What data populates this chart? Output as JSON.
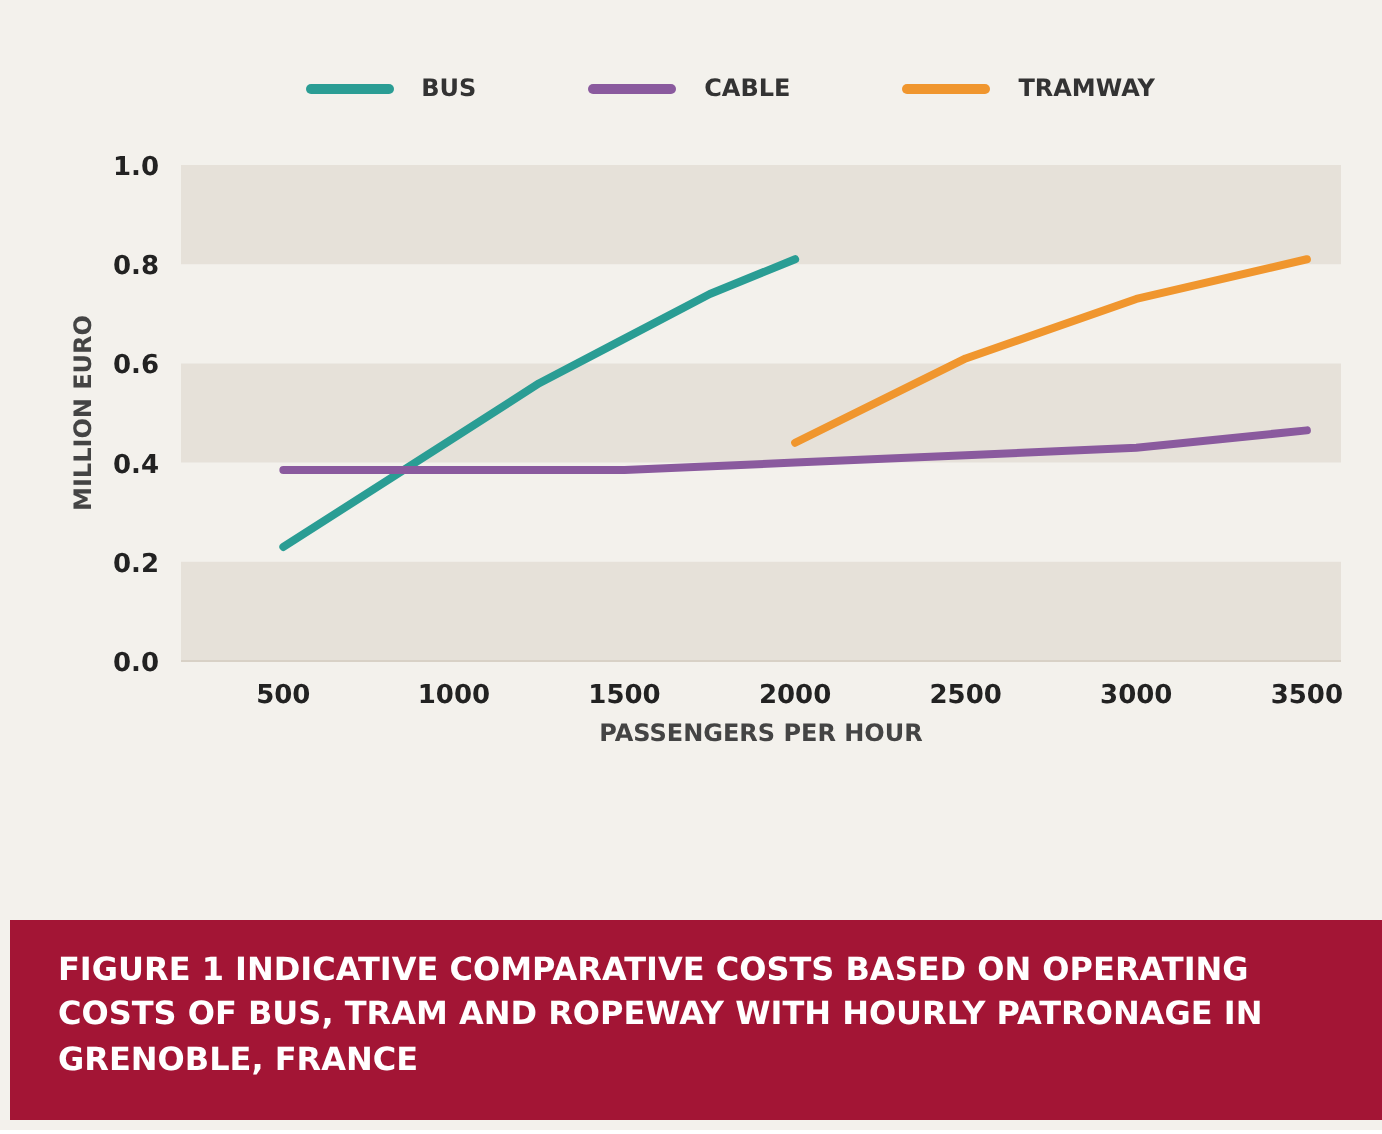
{
  "chart_data": {
    "type": "line",
    "title": "FIGURE 1  INDICATIVE COMPARATIVE COSTS BASED ON OPERATING COSTS OF BUS, TRAM AND ROPEWAY WITH HOURLY PATRONAGE IN GRENOBLE, FRANCE",
    "xlabel": "PASSENGERS PER HOUR",
    "ylabel": "MILLION EURO",
    "xlim": [
      200,
      3600
    ],
    "ylim": [
      0,
      1.0
    ],
    "xticks": [
      500,
      1000,
      1500,
      2000,
      2500,
      3000,
      3500
    ],
    "yticks": [
      {
        "value": 0,
        "label": "0.0"
      },
      0.2,
      0.4,
      0.6,
      0.8,
      {
        "value": 1.0,
        "label": "1.0"
      }
    ],
    "grid": false,
    "legend": "top",
    "marker": "none",
    "line_style": "solid",
    "bands": [
      {
        "axis": "y",
        "from": 0,
        "to": 0.2,
        "color": "#e6e1d9"
      },
      {
        "axis": "y",
        "from": 0.4,
        "to": 0.6,
        "color": "#e6e1d9"
      },
      {
        "axis": "y",
        "from": 0.8,
        "to": 1.0,
        "color": "#e6e1d9"
      }
    ],
    "series": [
      {
        "name": "BUS",
        "color": "#2a9d94",
        "x": [
          500,
          750,
          1000,
          1250,
          1500,
          1750,
          2000
        ],
        "values": [
          0.23,
          0.34,
          0.45,
          0.56,
          0.65,
          0.74,
          0.81
        ]
      },
      {
        "name": "CABLE",
        "color": "#8a5a9e",
        "x": [
          500,
          1000,
          1500,
          2000,
          2500,
          3000,
          3500
        ],
        "values": [
          0.385,
          0.385,
          0.385,
          0.4,
          0.415,
          0.43,
          0.465
        ]
      },
      {
        "name": "TRAMWAY",
        "color": "#f0962e",
        "x": [
          2000,
          2500,
          3000,
          3500
        ],
        "values": [
          0.44,
          0.61,
          0.73,
          0.81
        ]
      }
    ]
  }
}
